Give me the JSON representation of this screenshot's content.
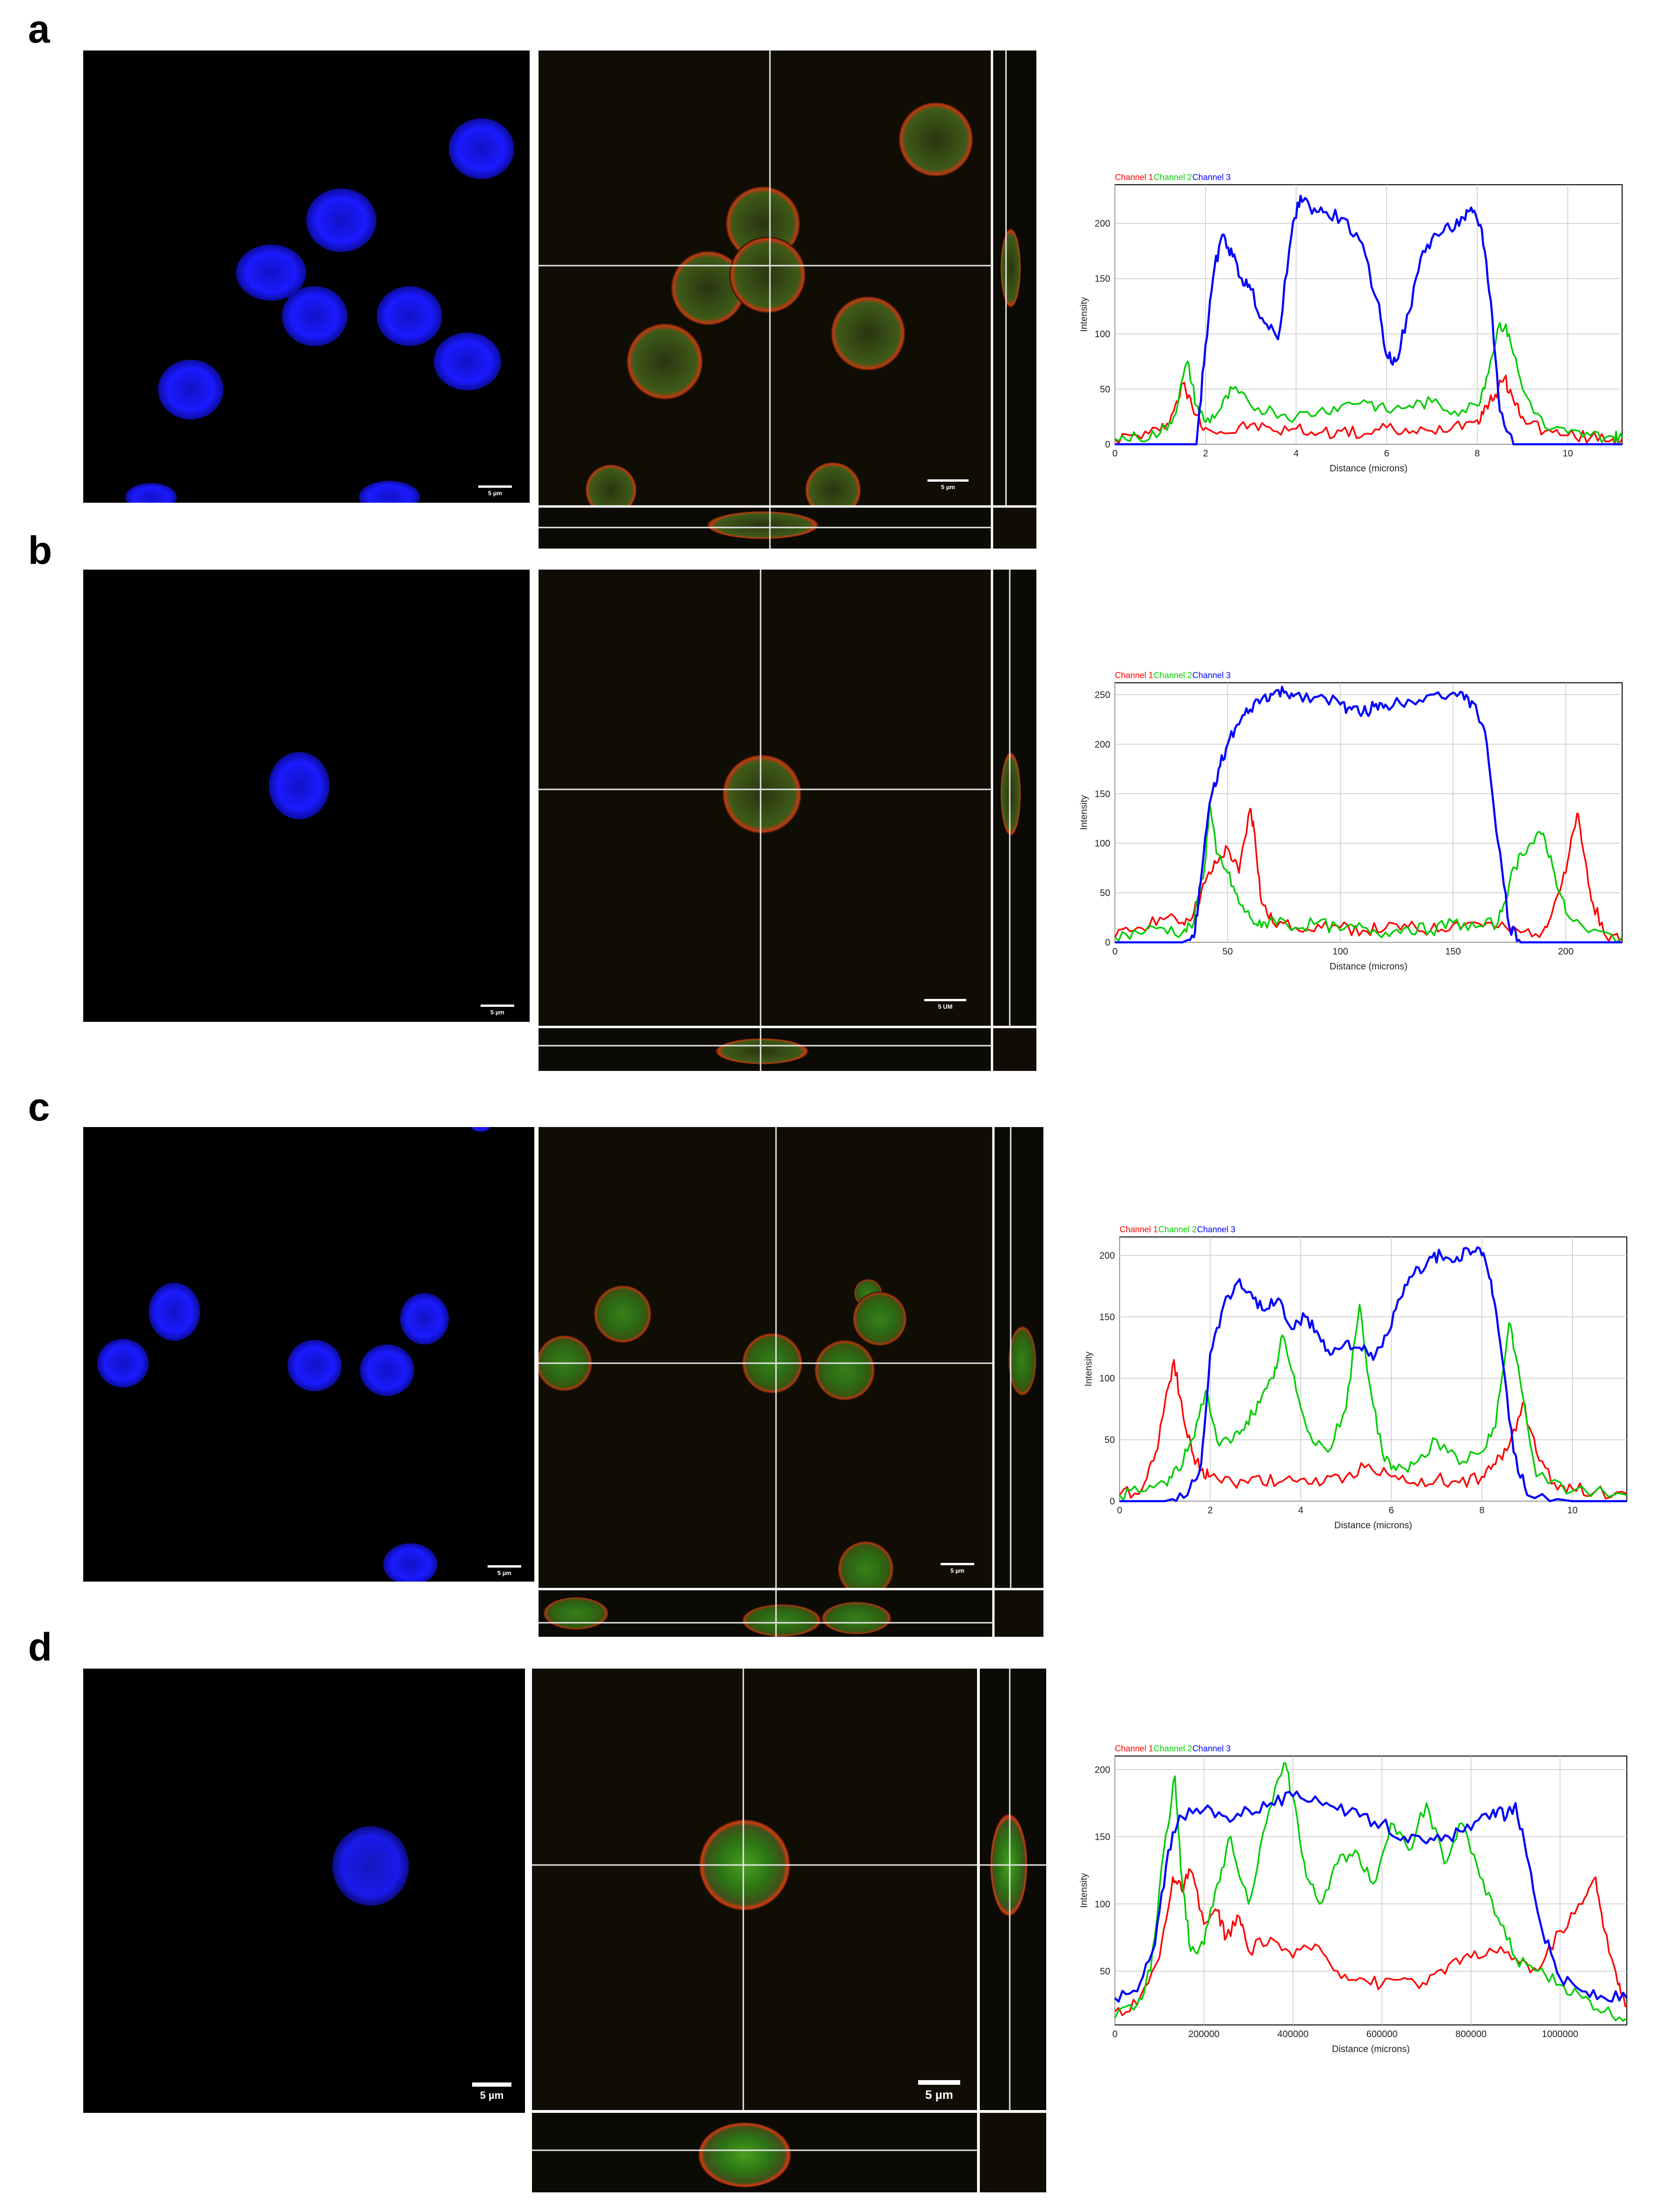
{
  "panels": [
    {
      "letter": "a",
      "scale_nuclear": "5 µm",
      "scale_merge": "5 µm"
    },
    {
      "letter": "b",
      "scale_nuclear": "5 µm",
      "scale_merge": "5 UM"
    },
    {
      "letter": "c",
      "scale_nuclear": "5 µm",
      "scale_merge": "5 µm"
    },
    {
      "letter": "d",
      "scale_nuclear": "5 µm",
      "scale_merge": "5 µm"
    }
  ],
  "colors": {
    "channel1": "#ff0000",
    "channel2": "#00cc00",
    "channel3": "#0000ff",
    "nucleus": "#1a1aff",
    "grid": "#c8c8c8"
  },
  "chart_data": [
    {
      "type": "line",
      "legend": [
        "Channel 1",
        "Channel 2",
        "Channel 3"
      ],
      "xlabel": "Distance (microns)",
      "ylabel": "Intensity",
      "xlim": [
        0,
        11.2
      ],
      "ylim": [
        0,
        235
      ],
      "xticks": [
        0,
        2,
        4,
        6,
        8,
        10
      ],
      "yticks": [
        0,
        50,
        100,
        150,
        200
      ],
      "series": [
        {
          "name": "Channel 1",
          "x": [
            0,
            0.5,
            1,
            1.3,
            1.5,
            1.7,
            2,
            2.5,
            3,
            3.5,
            4,
            4.5,
            5,
            5.5,
            6,
            6.5,
            7,
            7.5,
            8,
            8.2,
            8.4,
            8.6,
            8.8,
            9,
            9.5,
            10,
            10.5,
            11,
            11.2
          ],
          "y": [
            5,
            8,
            12,
            30,
            55,
            35,
            15,
            10,
            18,
            12,
            14,
            10,
            12,
            9,
            15,
            10,
            12,
            18,
            22,
            35,
            45,
            60,
            40,
            25,
            12,
            8,
            6,
            5,
            5
          ]
        },
        {
          "name": "Channel 2",
          "x": [
            0,
            0.5,
            1,
            1.3,
            1.6,
            1.8,
            2,
            2.3,
            2.6,
            3,
            3.5,
            4,
            4.5,
            5,
            5.5,
            6,
            6.5,
            7,
            7.5,
            8,
            8.2,
            8.5,
            8.7,
            9,
            9.5,
            10,
            10.5,
            11,
            11.2
          ],
          "y": [
            5,
            6,
            10,
            25,
            75,
            35,
            20,
            30,
            50,
            35,
            30,
            25,
            30,
            35,
            40,
            30,
            35,
            38,
            30,
            35,
            60,
            110,
            100,
            50,
            15,
            10,
            8,
            7,
            6
          ]
        },
        {
          "name": "Channel 3",
          "x": [
            0,
            1,
            1.8,
            2,
            2.2,
            2.4,
            2.6,
            2.8,
            3,
            3.3,
            3.6,
            3.9,
            4.1,
            4.3,
            4.6,
            5,
            5.4,
            5.8,
            6,
            6.2,
            6.5,
            6.8,
            7.1,
            7.4,
            7.7,
            7.9,
            8.1,
            8.3,
            8.5,
            8.8,
            9.2,
            10,
            11.2
          ],
          "y": [
            0,
            0,
            0,
            90,
            160,
            190,
            170,
            150,
            140,
            110,
            95,
            190,
            225,
            215,
            210,
            205,
            185,
            130,
            80,
            75,
            120,
            175,
            190,
            195,
            205,
            210,
            195,
            130,
            30,
            0,
            0,
            0,
            0
          ]
        }
      ]
    },
    {
      "type": "line",
      "legend": [
        "Channel 1",
        "Channel 2",
        "Channel 3"
      ],
      "xlabel": "Distance (microns)",
      "ylabel": "Intensity",
      "xlim": [
        0,
        225
      ],
      "ylim": [
        0,
        262
      ],
      "xticks": [
        0,
        50,
        100,
        150,
        200
      ],
      "yticks": [
        0,
        50,
        100,
        150,
        200,
        250
      ],
      "series": [
        {
          "name": "Channel 1",
          "x": [
            0,
            10,
            20,
            30,
            35,
            40,
            45,
            50,
            55,
            60,
            62,
            65,
            70,
            80,
            90,
            100,
            110,
            120,
            130,
            140,
            150,
            160,
            170,
            180,
            190,
            195,
            200,
            205,
            208,
            212,
            218,
            225
          ],
          "y": [
            5,
            15,
            25,
            20,
            30,
            60,
            80,
            95,
            70,
            135,
            110,
            40,
            20,
            15,
            18,
            15,
            12,
            14,
            15,
            12,
            18,
            20,
            15,
            10,
            12,
            40,
            70,
            130,
            90,
            40,
            5,
            5
          ]
        },
        {
          "name": "Channel 2",
          "x": [
            0,
            10,
            20,
            30,
            35,
            40,
            42,
            45,
            50,
            55,
            60,
            65,
            70,
            80,
            90,
            100,
            110,
            120,
            130,
            140,
            150,
            160,
            170,
            175,
            180,
            185,
            190,
            195,
            200,
            210,
            225
          ],
          "y": [
            5,
            10,
            15,
            10,
            20,
            80,
            140,
            90,
            70,
            40,
            25,
            15,
            25,
            15,
            20,
            12,
            15,
            10,
            15,
            12,
            20,
            15,
            20,
            60,
            90,
            100,
            110,
            70,
            30,
            10,
            5
          ]
        },
        {
          "name": "Channel 3",
          "x": [
            0,
            30,
            35,
            38,
            42,
            46,
            50,
            55,
            60,
            65,
            70,
            75,
            80,
            90,
            100,
            105,
            110,
            115,
            120,
            130,
            140,
            150,
            155,
            160,
            165,
            170,
            175,
            180,
            185,
            200,
            225
          ],
          "y": [
            0,
            0,
            5,
            60,
            140,
            175,
            200,
            220,
            235,
            245,
            250,
            252,
            250,
            248,
            240,
            235,
            232,
            238,
            240,
            245,
            250,
            252,
            245,
            240,
            200,
            100,
            15,
            0,
            0,
            0,
            0
          ]
        }
      ]
    },
    {
      "type": "line",
      "legend": [
        "Channel 1",
        "Channel 2",
        "Channel 3"
      ],
      "xlabel": "Distance (microns)",
      "ylabel": "Intensity",
      "xlim": [
        0,
        11.2
      ],
      "ylim": [
        0,
        215
      ],
      "xticks": [
        0,
        2,
        4,
        6,
        8,
        10
      ],
      "yticks": [
        0,
        50,
        100,
        150,
        200
      ],
      "series": [
        {
          "name": "Channel 1",
          "x": [
            0,
            0.5,
            0.8,
            1,
            1.2,
            1.4,
            1.6,
            1.8,
            2,
            2.5,
            3,
            3.5,
            4,
            4.5,
            5,
            5.5,
            6,
            6.5,
            7,
            7.5,
            8,
            8.3,
            8.6,
            8.9,
            9.2,
            9.6,
            10,
            10.5,
            11.2
          ],
          "y": [
            5,
            10,
            40,
            80,
            115,
            70,
            40,
            25,
            20,
            15,
            20,
            15,
            18,
            15,
            20,
            30,
            20,
            15,
            18,
            15,
            20,
            30,
            45,
            80,
            40,
            15,
            10,
            8,
            6
          ]
        },
        {
          "name": "Channel 2",
          "x": [
            0,
            0.5,
            1,
            1.3,
            1.6,
            1.9,
            2.2,
            2.5,
            2.8,
            3.1,
            3.4,
            3.6,
            3.9,
            4.2,
            4.6,
            5,
            5.3,
            5.5,
            5.8,
            6.1,
            6.5,
            7,
            7.5,
            8,
            8.3,
            8.6,
            8.8,
            9.2,
            10,
            11.2
          ],
          "y": [
            5,
            8,
            15,
            25,
            50,
            90,
            45,
            50,
            65,
            80,
            100,
            135,
            90,
            55,
            40,
            75,
            160,
            100,
            40,
            25,
            30,
            50,
            30,
            40,
            60,
            145,
            110,
            20,
            8,
            5
          ]
        },
        {
          "name": "Channel 3",
          "x": [
            0,
            1,
            1.5,
            1.8,
            2,
            2.3,
            2.6,
            2.9,
            3.2,
            3.5,
            3.8,
            4.1,
            4.4,
            4.7,
            5,
            5.3,
            5.6,
            5.9,
            6.2,
            6.5,
            6.8,
            7.1,
            7.4,
            7.7,
            8,
            8.2,
            8.4,
            8.7,
            9,
            10,
            11.2
          ],
          "y": [
            0,
            0,
            5,
            30,
            120,
            160,
            178,
            170,
            155,
            165,
            140,
            150,
            135,
            120,
            130,
            125,
            115,
            135,
            165,
            185,
            195,
            200,
            195,
            205,
            200,
            180,
            130,
            40,
            5,
            0,
            0
          ]
        }
      ]
    },
    {
      "type": "line",
      "legend": [
        "Channel 1",
        "Channel 2",
        "Channel 3"
      ],
      "xlabel": "Distance (microns)",
      "ylabel": "Intensity",
      "xlim": [
        0,
        1150000
      ],
      "ylim": [
        10,
        210
      ],
      "xticks": [
        0,
        200000,
        400000,
        600000,
        800000,
        1000000
      ],
      "yticks": [
        50,
        100,
        150,
        200
      ],
      "series": [
        {
          "name": "Channel 1",
          "x": [
            0,
            50000,
            100000,
            130000,
            150000,
            170000,
            200000,
            230000,
            250000,
            280000,
            300000,
            350000,
            400000,
            450000,
            500000,
            550000,
            600000,
            650000,
            700000,
            750000,
            800000,
            850000,
            900000,
            950000,
            1000000,
            1050000,
            1080000,
            1100000,
            1130000,
            1150000
          ],
          "y": [
            20,
            25,
            60,
            120,
            110,
            125,
            85,
            95,
            75,
            90,
            65,
            75,
            60,
            70,
            50,
            45,
            40,
            45,
            40,
            55,
            60,
            65,
            60,
            50,
            80,
            100,
            120,
            80,
            40,
            25
          ]
        },
        {
          "name": "Channel 2",
          "x": [
            0,
            50000,
            80000,
            110000,
            135000,
            150000,
            170000,
            200000,
            230000,
            260000,
            300000,
            340000,
            380000,
            400000,
            430000,
            460000,
            500000,
            540000,
            580000,
            620000,
            660000,
            700000,
            740000,
            780000,
            820000,
            860000,
            900000,
            950000,
            1000000,
            1050000,
            1100000,
            1150000
          ],
          "y": [
            15,
            25,
            50,
            140,
            195,
            120,
            65,
            70,
            115,
            150,
            100,
            160,
            205,
            180,
            120,
            100,
            130,
            140,
            115,
            160,
            140,
            175,
            130,
            160,
            120,
            90,
            60,
            50,
            40,
            30,
            20,
            15
          ]
        },
        {
          "name": "Channel 3",
          "x": [
            0,
            50000,
            90000,
            120000,
            150000,
            200000,
            250000,
            300000,
            350000,
            400000,
            450000,
            500000,
            550000,
            600000,
            650000,
            700000,
            750000,
            800000,
            850000,
            880000,
            900000,
            930000,
            960000,
            1000000,
            1050000,
            1100000,
            1150000
          ],
          "y": [
            30,
            35,
            70,
            140,
            165,
            170,
            165,
            170,
            175,
            180,
            180,
            170,
            165,
            160,
            150,
            145,
            150,
            155,
            170,
            165,
            175,
            130,
            80,
            45,
            35,
            30,
            30
          ]
        }
      ]
    }
  ]
}
